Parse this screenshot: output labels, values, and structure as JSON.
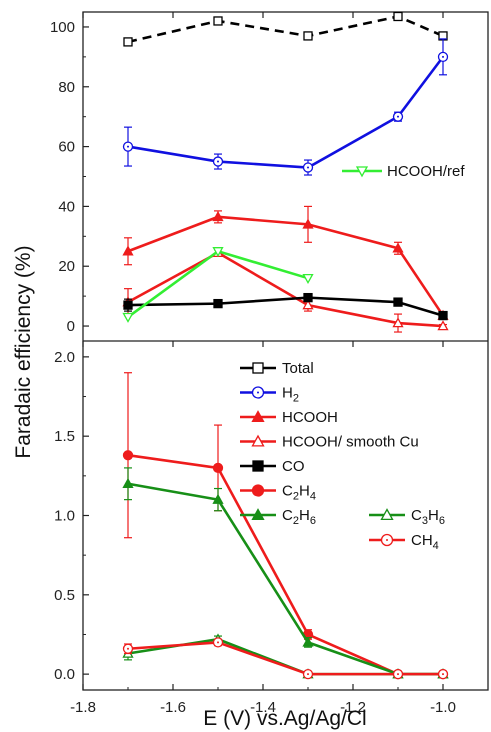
{
  "chart_data": [
    {
      "type": "line",
      "panel": "top",
      "ylim": [
        -5,
        105
      ],
      "yticks": [
        0,
        20,
        40,
        60,
        80,
        100
      ],
      "x": [
        -1.7,
        -1.5,
        -1.3,
        -1.1,
        -1.0
      ],
      "series": [
        {
          "key": "total",
          "x": [
            -1.7,
            -1.5,
            -1.3,
            -1.1,
            -1.0
          ],
          "values": [
            95,
            102,
            97,
            103.5,
            97
          ],
          "color": "#000000",
          "marker": "square-open",
          "dash": true
        },
        {
          "key": "h2",
          "x": [
            -1.7,
            -1.5,
            -1.3,
            -1.1,
            -1.0
          ],
          "values": [
            60,
            55,
            53,
            70,
            90
          ],
          "err": [
            6.5,
            2.5,
            2.5,
            1.5,
            6
          ],
          "color": "#1010e0",
          "marker": "circle-open"
        },
        {
          "key": "hcooh",
          "x": [
            -1.7,
            -1.5,
            -1.3,
            -1.1,
            -1.0
          ],
          "values": [
            25,
            36.5,
            34,
            26,
            3.5
          ],
          "err": [
            4.5,
            2,
            6,
            2,
            1
          ],
          "color": "#ee1c1c",
          "marker": "triangle-filled"
        },
        {
          "key": "hcooh_smooth",
          "x": [
            -1.7,
            -1.5,
            -1.3,
            -1.1,
            -1.0
          ],
          "values": [
            8,
            24.5,
            7,
            1,
            0
          ],
          "err": [
            4.5,
            1,
            2,
            3,
            0.5
          ],
          "color": "#ee1c1c",
          "marker": "triangle-open"
        },
        {
          "key": "co",
          "x": [
            -1.7,
            -1.5,
            -1.3,
            -1.1,
            -1.0
          ],
          "values": [
            7,
            7.5,
            9.5,
            8,
            3.5
          ],
          "err": [
            2,
            0.5,
            0.5,
            0.5,
            0.5
          ],
          "color": "#000000",
          "marker": "square-filled"
        },
        {
          "name": "HCOOH/ref",
          "x": [
            -1.7,
            -1.5,
            -1.3
          ],
          "values": [
            3,
            25,
            16
          ],
          "color": "#33ee33",
          "marker": "triangle-down-open"
        }
      ]
    },
    {
      "type": "line",
      "panel": "bottom",
      "xlabel": "E (V) vs.Ag/Ag/Cl",
      "xlim": [
        -1.8,
        -0.9
      ],
      "xticks": [
        "-1.8",
        "-1.6",
        "-1.4",
        "-1.2",
        "-1.0"
      ],
      "ylim": [
        -0.1,
        2.1
      ],
      "yticks": [
        "0.0",
        "0.5",
        "1.0",
        "1.5",
        "2.0"
      ],
      "shared_ylabel": "Faradaic efficiency (%)",
      "series": [
        {
          "key": "c2h4",
          "x": [
            -1.7,
            -1.5,
            -1.3,
            -1.1,
            -1.0
          ],
          "values": [
            1.38,
            1.3,
            0.25,
            0.0,
            0.0
          ],
          "err": [
            0.52,
            0.27,
            0.03,
            0,
            0
          ],
          "color": "#ee1c1c",
          "marker": "circle-filled"
        },
        {
          "key": "c2h6",
          "x": [
            -1.7,
            -1.5,
            -1.3,
            -1.1,
            -1.0
          ],
          "values": [
            1.2,
            1.1,
            0.2,
            0.0,
            0.0
          ],
          "err": [
            0.1,
            0.07,
            0.03,
            0,
            0
          ],
          "color": "#178f17",
          "marker": "triangle-filled"
        },
        {
          "key": "c3h6",
          "x": [
            -1.7,
            -1.5,
            -1.3,
            -1.1,
            -1.0
          ],
          "values": [
            0.13,
            0.22,
            0.0,
            0.0,
            0.0
          ],
          "err": [
            0.04,
            0.02,
            0,
            0,
            0
          ],
          "color": "#178f17",
          "marker": "triangle-open"
        },
        {
          "key": "ch4",
          "x": [
            -1.7,
            -1.5,
            -1.3,
            -1.1,
            -1.0
          ],
          "values": [
            0.16,
            0.2,
            0.0,
            0.0,
            0.0
          ],
          "err": [
            0.03,
            0.02,
            0,
            0,
            0
          ],
          "color": "#ee1c1c",
          "marker": "circle-open"
        }
      ],
      "legend": {
        "placement": "top-right",
        "entries": [
          {
            "label": "Total",
            "color": "#000000",
            "marker": "square-open",
            "col": 0
          },
          {
            "label": "H",
            "sub": "2",
            "color": "#1010e0",
            "marker": "circle-open",
            "col": 0
          },
          {
            "label": "HCOOH",
            "color": "#ee1c1c",
            "marker": "triangle-filled",
            "col": 0
          },
          {
            "label": "HCOOH/ smooth Cu",
            "color": "#ee1c1c",
            "marker": "triangle-open",
            "col": 0
          },
          {
            "label": "CO",
            "color": "#000000",
            "marker": "square-filled",
            "col": 0
          },
          {
            "label": "C",
            "sub": "2",
            "label2": "H",
            "sub2": "4",
            "color": "#ee1c1c",
            "marker": "circle-filled",
            "col": 0
          },
          {
            "label": "C",
            "sub": "2",
            "label2": "H",
            "sub2": "6",
            "color": "#178f17",
            "marker": "triangle-filled",
            "col": 0
          },
          {
            "label": "C",
            "sub": "3",
            "label2": "H",
            "sub2": "6",
            "color": "#178f17",
            "marker": "triangle-open",
            "col": 1
          },
          {
            "label": "CH",
            "sub": "4",
            "color": "#ee1c1c",
            "marker": "circle-open",
            "col": 1
          }
        ]
      }
    }
  ]
}
